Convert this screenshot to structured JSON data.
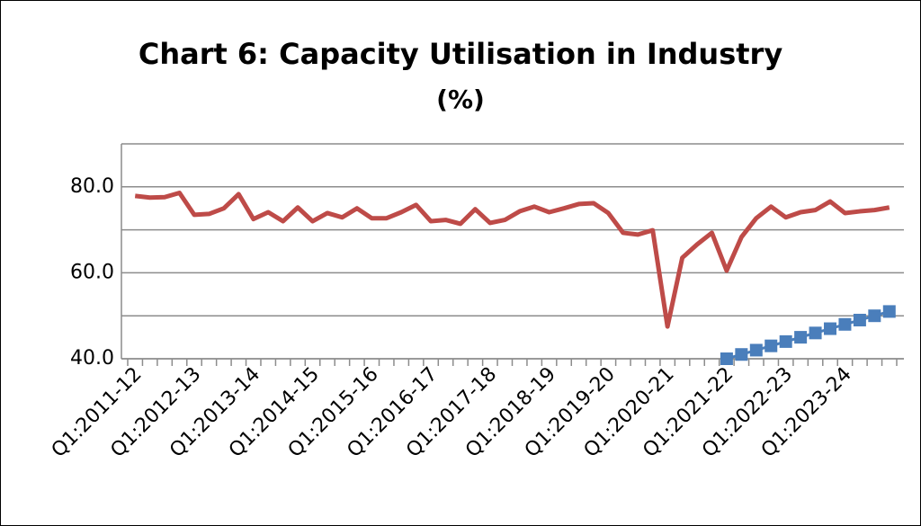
{
  "chart_data": {
    "type": "line",
    "title": "Chart 6: Capacity Utilisation in Industry",
    "subtitle": "(%)",
    "categories": [
      "Q1:2011-12",
      null,
      null,
      null,
      "Q1:2012-13",
      null,
      null,
      null,
      "Q1:2013-14",
      null,
      null,
      null,
      "Q1:2014-15",
      null,
      null,
      null,
      "Q1:2015-16",
      null,
      null,
      null,
      "Q1:2016-17",
      null,
      null,
      null,
      "Q1:2017-18",
      null,
      null,
      null,
      "Q1:2018-19",
      null,
      null,
      null,
      "Q1:2019-20",
      null,
      null,
      null,
      "Q1:2020-21",
      null,
      null,
      null,
      "Q1:2021-22",
      null,
      null,
      null,
      "Q1:2022-23",
      null,
      null,
      null,
      "Q1:2023-24",
      null,
      null,
      null
    ],
    "series": [
      {
        "color": "#be4b48",
        "values": [
          77.9,
          77.5,
          77.6,
          78.6,
          73.5,
          73.7,
          75.0,
          78.3,
          72.5,
          74.1,
          72.0,
          75.2,
          72.0,
          73.9,
          72.9,
          75.0,
          72.7,
          72.7,
          74.1,
          75.8,
          72.0,
          72.3,
          71.4,
          74.8,
          71.6,
          72.3,
          74.3,
          75.4,
          74.1,
          75.0,
          76.0,
          76.2,
          73.9,
          69.3,
          68.9,
          69.9,
          47.5,
          63.5,
          66.6,
          69.3,
          60.5,
          68.3,
          72.7,
          75.4,
          72.9,
          74.1,
          74.6,
          76.6,
          73.9,
          74.3,
          74.6,
          75.2
        ]
      },
      {
        "color": "#4a7ebb",
        "markers": true,
        "values": [
          null,
          null,
          null,
          null,
          null,
          null,
          null,
          null,
          null,
          null,
          null,
          null,
          null,
          null,
          null,
          null,
          null,
          null,
          null,
          null,
          null,
          null,
          null,
          null,
          null,
          null,
          null,
          null,
          null,
          null,
          null,
          null,
          null,
          null,
          null,
          null,
          null,
          null,
          null,
          null,
          40,
          41,
          42,
          43,
          44,
          45,
          46,
          47,
          48,
          49,
          50,
          51
        ]
      }
    ],
    "ylim": [
      40,
      90
    ],
    "yticks": [
      {
        "value": 40,
        "label": "40.0"
      },
      {
        "value": 60,
        "label": "60.0"
      },
      {
        "value": 80,
        "label": "80.0"
      }
    ],
    "minor_yticks": [
      50,
      70,
      90
    ],
    "grid": true
  }
}
